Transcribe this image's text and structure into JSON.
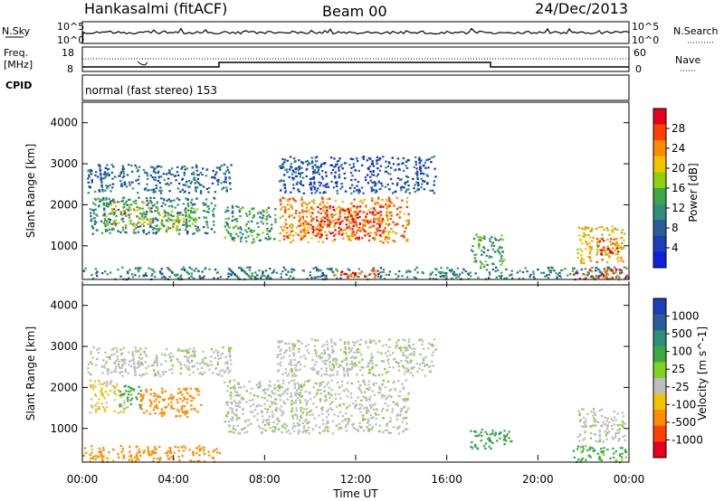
{
  "header": {
    "station": "Hankasalmi (fitACF)",
    "beam": "Beam 00",
    "date": "24/Dec/2013"
  },
  "noise_panel": {
    "left_label": "N.Sky",
    "right_label": "N.Search",
    "tick_top": "10^5",
    "tick_bottom": "10^0"
  },
  "freq_panel": {
    "left_label_line1": "Freq.",
    "left_label_line2": "[MHz]",
    "tick_top_left": "18",
    "tick_bottom_left": "8",
    "right_label": "Nave",
    "tick_top_right": "60",
    "tick_bottom_right": "0"
  },
  "cpid_panel": {
    "label": "CPID",
    "mode": "normal (fast stereo) 153"
  },
  "power_panel": {
    "ylabel": "Slant Range [km]",
    "colorbar_label": "Power [dB]",
    "colorbar_ticks": [
      "28",
      "24",
      "20",
      "16",
      "12",
      "8",
      "4"
    ],
    "colorbar_colors": [
      "#e8001c",
      "#ff4000",
      "#ff8c00",
      "#f2c300",
      "#8fd10a",
      "#3aa845",
      "#2f8f7a",
      "#2a5d9a",
      "#1a3fb8",
      "#1020e0"
    ]
  },
  "velocity_panel": {
    "ylabel": "Slant Range [km]",
    "colorbar_label": "Velocity [m s^-1]",
    "colorbar_ticks": [
      "1000",
      "500",
      "100",
      "25",
      "-25",
      "-100",
      "-500",
      "-1000"
    ],
    "colorbar_colors": [
      "#1a3fb8",
      "#2a5d9a",
      "#2f8f7a",
      "#3aa845",
      "#7ed321",
      "#bdbdbd",
      "#f2c300",
      "#ff8c00",
      "#ff4000",
      "#e8001c"
    ]
  },
  "x_axis": {
    "label": "Time UT",
    "ticks": [
      "00:00",
      "04:00",
      "08:00",
      "12:00",
      "16:00",
      "20:00",
      "00:00"
    ]
  },
  "chart_data": [
    {
      "type": "heatmap",
      "title": "Power",
      "xlabel": "Time UT",
      "ylabel": "Slant Range [km]",
      "xlim": [
        0,
        24
      ],
      "ylim": [
        180,
        4500
      ],
      "yticks": [
        1000,
        2000,
        3000,
        4000
      ],
      "colorbar": {
        "label": "Power [dB]",
        "range": [
          0,
          30
        ],
        "ticks": [
          4,
          8,
          12,
          16,
          20,
          24,
          28
        ]
      },
      "regions": [
        {
          "t0": 0.2,
          "t1": 6.5,
          "r0": 2300,
          "r1": 3000,
          "value": 8
        },
        {
          "t0": 0.3,
          "t1": 5.8,
          "r0": 1300,
          "r1": 2200,
          "value": 10
        },
        {
          "t0": 1.0,
          "t1": 3.0,
          "r0": 1500,
          "r1": 2100,
          "value": 18
        },
        {
          "t0": 3.2,
          "t1": 5.0,
          "r0": 1400,
          "r1": 2000,
          "value": 16
        },
        {
          "t0": 6.2,
          "t1": 8.5,
          "r0": 1100,
          "r1": 2000,
          "value": 12
        },
        {
          "t0": 8.6,
          "t1": 14.3,
          "r0": 1100,
          "r1": 2200,
          "value": 22
        },
        {
          "t0": 10.0,
          "t1": 13.5,
          "r0": 1200,
          "r1": 2000,
          "value": 27
        },
        {
          "t0": 8.5,
          "t1": 15.5,
          "r0": 2300,
          "r1": 3200,
          "value": 6
        },
        {
          "t0": 17.0,
          "t1": 18.5,
          "r0": 500,
          "r1": 1300,
          "value": 12
        },
        {
          "t0": 21.7,
          "t1": 23.8,
          "r0": 600,
          "r1": 1500,
          "value": 20
        },
        {
          "t0": 22.5,
          "t1": 23.5,
          "r0": 800,
          "r1": 1200,
          "value": 27
        },
        {
          "t0": 0.0,
          "t1": 24.0,
          "r0": 200,
          "r1": 500,
          "value": 10
        },
        {
          "t0": 11.0,
          "t1": 13.0,
          "r0": 250,
          "r1": 450,
          "value": 26
        },
        {
          "t0": 21.5,
          "t1": 23.9,
          "r0": 200,
          "r1": 450,
          "value": 26
        }
      ]
    },
    {
      "type": "heatmap",
      "title": "Velocity",
      "xlabel": "Time UT",
      "ylabel": "Slant Range [km]",
      "xlim": [
        0,
        24
      ],
      "ylim": [
        180,
        4500
      ],
      "yticks": [
        1000,
        2000,
        3000,
        4000
      ],
      "colorbar": {
        "label": "Velocity [m s^-1]",
        "range": [
          -1000,
          1000
        ],
        "ticks": [
          1000,
          500,
          100,
          25,
          -25,
          -100,
          -500,
          -1000
        ]
      },
      "regions": [
        {
          "t0": 0.2,
          "t1": 6.5,
          "r0": 2300,
          "r1": 3000,
          "value": 0
        },
        {
          "t0": 0.3,
          "t1": 1.8,
          "r0": 1400,
          "r1": 2200,
          "value": -50
        },
        {
          "t0": 1.6,
          "t1": 2.6,
          "r0": 1500,
          "r1": 2100,
          "value": 60
        },
        {
          "t0": 2.5,
          "t1": 5.2,
          "r0": 1300,
          "r1": 2000,
          "value": -150
        },
        {
          "t0": 6.2,
          "t1": 14.3,
          "r0": 900,
          "r1": 2200,
          "value": 0
        },
        {
          "t0": 8.5,
          "t1": 15.5,
          "r0": 2300,
          "r1": 3200,
          "value": 0
        },
        {
          "t0": 17.0,
          "t1": 18.8,
          "r0": 500,
          "r1": 1000,
          "value": 80
        },
        {
          "t0": 21.7,
          "t1": 23.8,
          "r0": 700,
          "r1": 1500,
          "value": 0
        },
        {
          "t0": 0.0,
          "t1": 6.0,
          "r0": 200,
          "r1": 600,
          "value": -120
        },
        {
          "t0": 21.5,
          "t1": 23.9,
          "r0": 200,
          "r1": 600,
          "value": 60
        }
      ]
    }
  ]
}
